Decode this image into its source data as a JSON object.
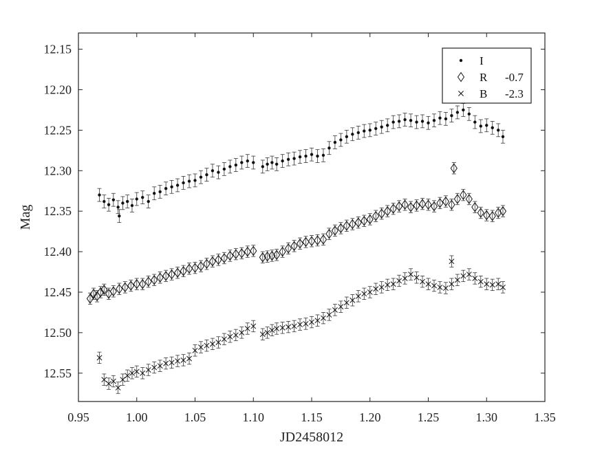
{
  "chart_data": {
    "type": "scatter",
    "title": "",
    "xlabel": "JD2458012",
    "ylabel": "Mag",
    "xlim": [
      0.95,
      1.35
    ],
    "ylim": [
      12.13,
      12.585
    ],
    "y_inverted": true,
    "grid": false,
    "legend_position": "top-right",
    "x_ticks": [
      "0.95",
      "1.00",
      "1.05",
      "1.10",
      "1.15",
      "1.20",
      "1.25",
      "1.30",
      "1.35"
    ],
    "y_ticks": [
      "12.15",
      "12.20",
      "12.25",
      "12.30",
      "12.35",
      "12.40",
      "12.45",
      "12.50",
      "12.55"
    ],
    "series": [
      {
        "name": "I",
        "offset": "",
        "marker": "dot",
        "error": 0.008,
        "x": [
          0.968,
          0.972,
          0.976,
          0.98,
          0.984,
          0.988,
          0.992,
          0.996,
          1.0,
          1.005,
          1.01,
          1.015,
          1.02,
          1.025,
          1.03,
          1.035,
          1.04,
          1.045,
          1.05,
          1.055,
          1.06,
          1.065,
          1.07,
          1.075,
          1.08,
          1.085,
          1.09,
          1.095,
          1.1,
          1.108,
          1.112,
          1.116,
          1.12,
          1.125,
          1.13,
          1.135,
          1.14,
          1.145,
          1.15,
          1.155,
          1.16,
          1.165,
          1.17,
          1.175,
          1.18,
          1.185,
          1.19,
          1.195,
          1.2,
          1.205,
          1.21,
          1.215,
          1.22,
          1.225,
          1.23,
          1.235,
          1.24,
          1.245,
          1.25,
          1.255,
          1.26,
          1.265,
          1.27,
          1.275,
          1.28,
          1.285,
          1.29,
          1.295,
          1.3,
          1.305,
          1.31,
          1.314,
          0.985
        ],
        "y": [
          12.33,
          12.338,
          12.342,
          12.336,
          12.345,
          12.34,
          12.338,
          12.343,
          12.335,
          12.333,
          12.338,
          12.328,
          12.326,
          12.322,
          12.32,
          12.318,
          12.315,
          12.313,
          12.312,
          12.308,
          12.305,
          12.3,
          12.302,
          12.298,
          12.295,
          12.293,
          12.29,
          12.288,
          12.29,
          12.295,
          12.292,
          12.29,
          12.292,
          12.288,
          12.286,
          12.285,
          12.283,
          12.282,
          12.28,
          12.282,
          12.281,
          12.272,
          12.265,
          12.262,
          12.258,
          12.255,
          12.253,
          12.251,
          12.25,
          12.248,
          12.246,
          12.244,
          12.24,
          12.239,
          12.237,
          12.238,
          12.24,
          12.239,
          12.241,
          12.238,
          12.235,
          12.236,
          12.232,
          12.228,
          12.225,
          12.23,
          12.24,
          12.245,
          12.244,
          12.247,
          12.25,
          12.258,
          12.356
        ]
      },
      {
        "name": "R",
        "offset": "-0.7",
        "marker": "diamond",
        "error": 0.007,
        "x": [
          0.96,
          0.963,
          0.966,
          0.969,
          0.972,
          0.976,
          0.98,
          0.985,
          0.99,
          0.995,
          1.0,
          1.005,
          1.01,
          1.015,
          1.02,
          1.025,
          1.03,
          1.035,
          1.04,
          1.045,
          1.05,
          1.055,
          1.06,
          1.065,
          1.07,
          1.075,
          1.08,
          1.085,
          1.09,
          1.095,
          1.1,
          1.108,
          1.112,
          1.116,
          1.12,
          1.125,
          1.13,
          1.135,
          1.14,
          1.145,
          1.15,
          1.155,
          1.16,
          1.165,
          1.17,
          1.175,
          1.18,
          1.185,
          1.19,
          1.195,
          1.2,
          1.205,
          1.21,
          1.215,
          1.22,
          1.225,
          1.23,
          1.235,
          1.24,
          1.245,
          1.25,
          1.255,
          1.26,
          1.265,
          1.27,
          1.275,
          1.28,
          1.285,
          1.29,
          1.295,
          1.3,
          1.305,
          1.31,
          1.314,
          1.272
        ],
        "y": [
          12.458,
          12.452,
          12.455,
          12.45,
          12.447,
          12.452,
          12.449,
          12.446,
          12.444,
          12.442,
          12.44,
          12.44,
          12.437,
          12.435,
          12.432,
          12.43,
          12.428,
          12.426,
          12.424,
          12.421,
          12.42,
          12.418,
          12.415,
          12.412,
          12.41,
          12.408,
          12.405,
          12.403,
          12.402,
          12.4,
          12.399,
          12.407,
          12.406,
          12.405,
          12.404,
          12.4,
          12.396,
          12.393,
          12.39,
          12.388,
          12.387,
          12.386,
          12.385,
          12.378,
          12.374,
          12.371,
          12.368,
          12.366,
          12.364,
          12.362,
          12.36,
          12.356,
          12.353,
          12.35,
          12.347,
          12.344,
          12.342,
          12.345,
          12.343,
          12.341,
          12.342,
          12.344,
          12.34,
          12.338,
          12.342,
          12.335,
          12.33,
          12.335,
          12.345,
          12.352,
          12.355,
          12.356,
          12.352,
          12.35,
          12.297
        ]
      },
      {
        "name": "B",
        "offset": "-2.3",
        "marker": "x",
        "error": 0.007,
        "x": [
          0.968,
          0.972,
          0.976,
          0.98,
          0.984,
          0.988,
          0.992,
          0.996,
          1.0,
          1.005,
          1.01,
          1.015,
          1.02,
          1.025,
          1.03,
          1.035,
          1.04,
          1.045,
          1.05,
          1.055,
          1.06,
          1.065,
          1.07,
          1.075,
          1.08,
          1.085,
          1.09,
          1.095,
          1.1,
          1.108,
          1.112,
          1.116,
          1.12,
          1.125,
          1.13,
          1.135,
          1.14,
          1.145,
          1.15,
          1.155,
          1.16,
          1.165,
          1.17,
          1.175,
          1.18,
          1.185,
          1.19,
          1.195,
          1.2,
          1.205,
          1.21,
          1.215,
          1.22,
          1.225,
          1.23,
          1.235,
          1.24,
          1.245,
          1.25,
          1.255,
          1.26,
          1.265,
          1.27,
          1.275,
          1.28,
          1.285,
          1.29,
          1.295,
          1.3,
          1.305,
          1.31,
          1.314,
          1.27
        ],
        "y": [
          12.531,
          12.558,
          12.563,
          12.56,
          12.568,
          12.558,
          12.553,
          12.55,
          12.548,
          12.55,
          12.546,
          12.543,
          12.541,
          12.538,
          12.537,
          12.535,
          12.534,
          12.532,
          12.522,
          12.518,
          12.516,
          12.514,
          12.512,
          12.508,
          12.505,
          12.503,
          12.5,
          12.495,
          12.492,
          12.502,
          12.5,
          12.497,
          12.495,
          12.494,
          12.493,
          12.492,
          12.49,
          12.489,
          12.487,
          12.485,
          12.482,
          12.478,
          12.472,
          12.468,
          12.463,
          12.46,
          12.455,
          12.452,
          12.45,
          12.446,
          12.444,
          12.441,
          12.44,
          12.436,
          12.433,
          12.428,
          12.432,
          12.437,
          12.44,
          12.442,
          12.444,
          12.445,
          12.44,
          12.435,
          12.43,
          12.428,
          12.433,
          12.437,
          12.44,
          12.441,
          12.44,
          12.444,
          12.412
        ]
      }
    ]
  }
}
